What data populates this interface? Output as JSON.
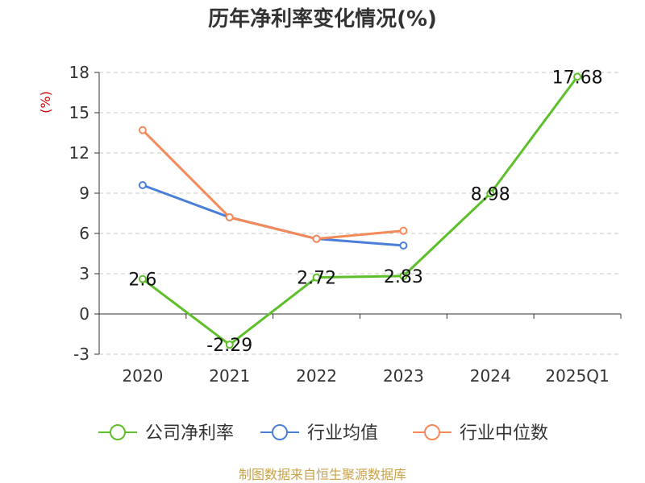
{
  "source": "制图数据来自恒生聚源数据库",
  "chart_data": {
    "type": "line",
    "title": "历年净利率变化情况(%)",
    "unit_label": "(%)",
    "categories": [
      "2020",
      "2021",
      "2022",
      "2023",
      "2024",
      "2025Q1"
    ],
    "ylim": [
      -3,
      18
    ],
    "yticks": [
      -3,
      0,
      3,
      6,
      9,
      12,
      15,
      18
    ],
    "grid": true,
    "legend_position": "bottom",
    "series": [
      {
        "name": "公司净利率",
        "color": "#5dbf2a",
        "values": [
          2.6,
          -2.29,
          2.72,
          2.83,
          8.98,
          17.68
        ],
        "labels": [
          "2.6",
          "-2.29",
          "2.72",
          "2.83",
          "8.98",
          "17.68"
        ]
      },
      {
        "name": "行业均值",
        "color": "#4a7fd8",
        "values": [
          9.6,
          7.2,
          5.6,
          5.1,
          null,
          null
        ]
      },
      {
        "name": "行业中位数",
        "color": "#f4895a",
        "values": [
          13.7,
          7.2,
          5.6,
          6.2,
          null,
          null
        ]
      }
    ]
  }
}
